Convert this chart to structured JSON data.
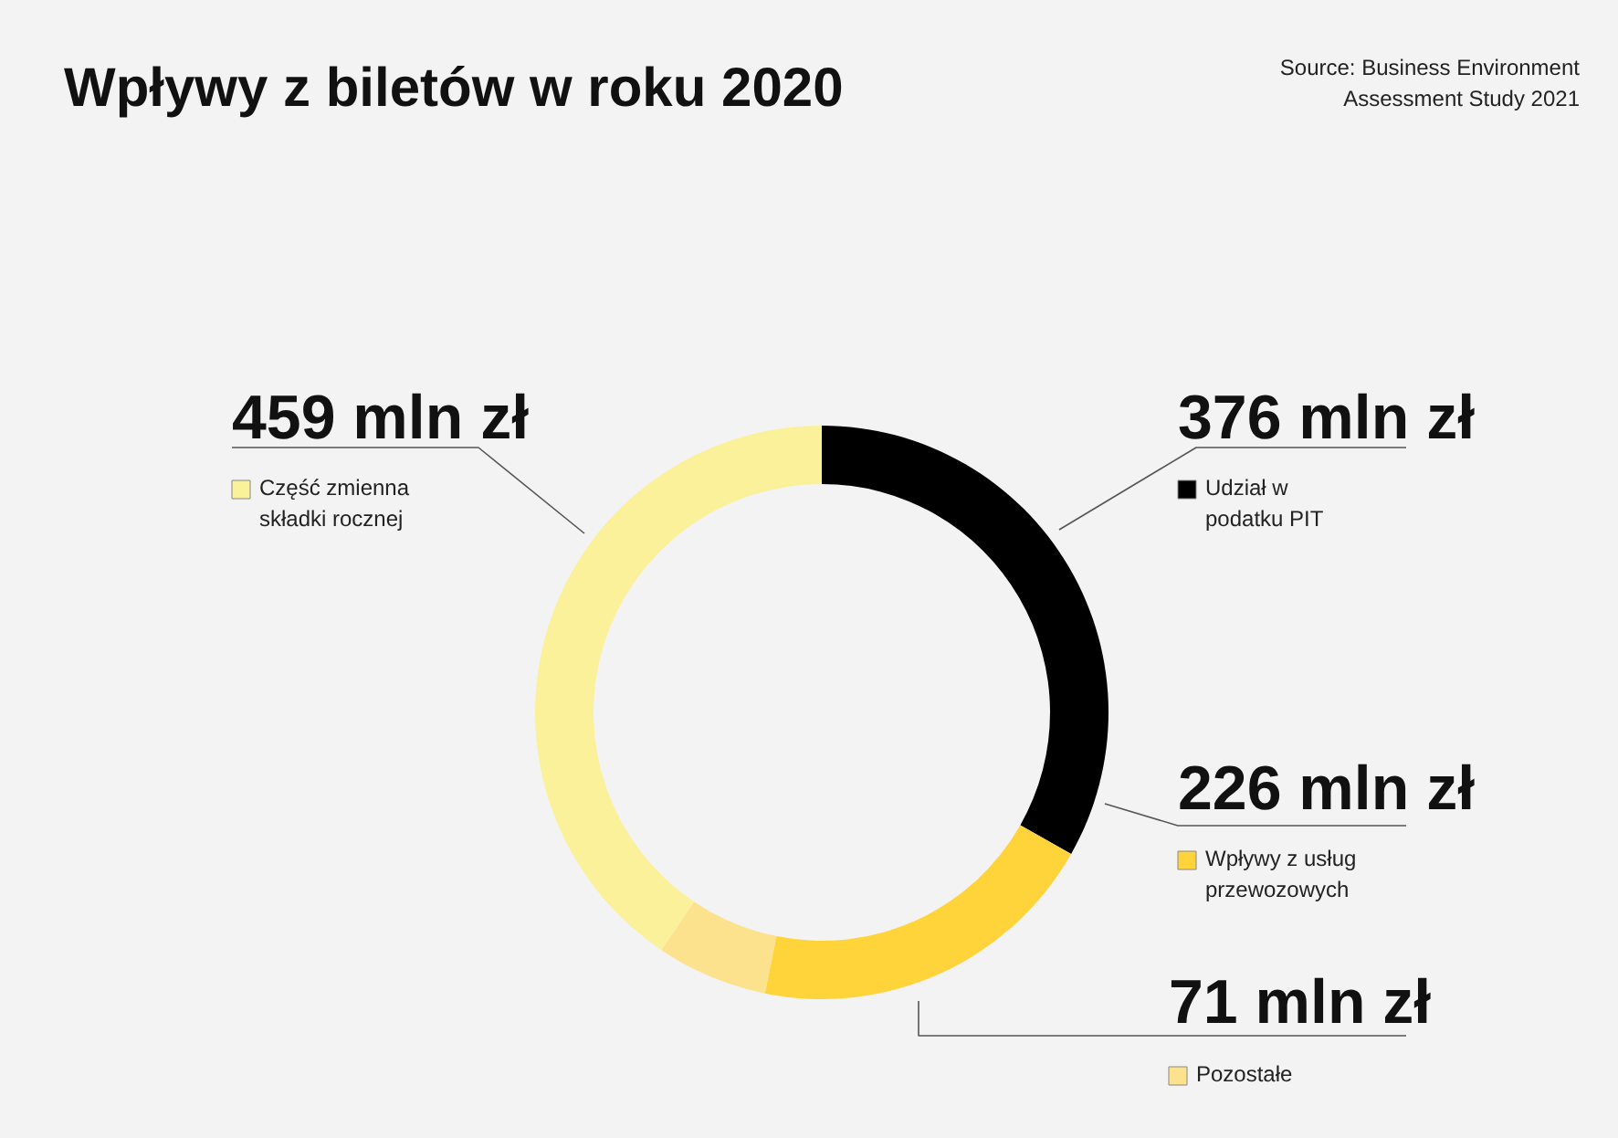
{
  "chart_data": {
    "type": "donut",
    "title": "Wpływy z biletów w roku 2020",
    "annotations": [
      "Source: Business Environment Assessment Study 2021"
    ],
    "categories": [
      "Udział w podatku PIT",
      "Wpływy z usług przewozowych",
      "Pozostałe",
      "Część zmienna składki rocznej"
    ],
    "values": [
      376,
      226,
      71,
      459
    ],
    "value_labels": [
      "376 mln zł",
      "226 mln zł",
      "71 mln zł",
      "459 mln zł"
    ],
    "colors": [
      "#000000",
      "#ffd43b",
      "#fde28e",
      "#fbf19b"
    ],
    "legend": "right"
  }
}
